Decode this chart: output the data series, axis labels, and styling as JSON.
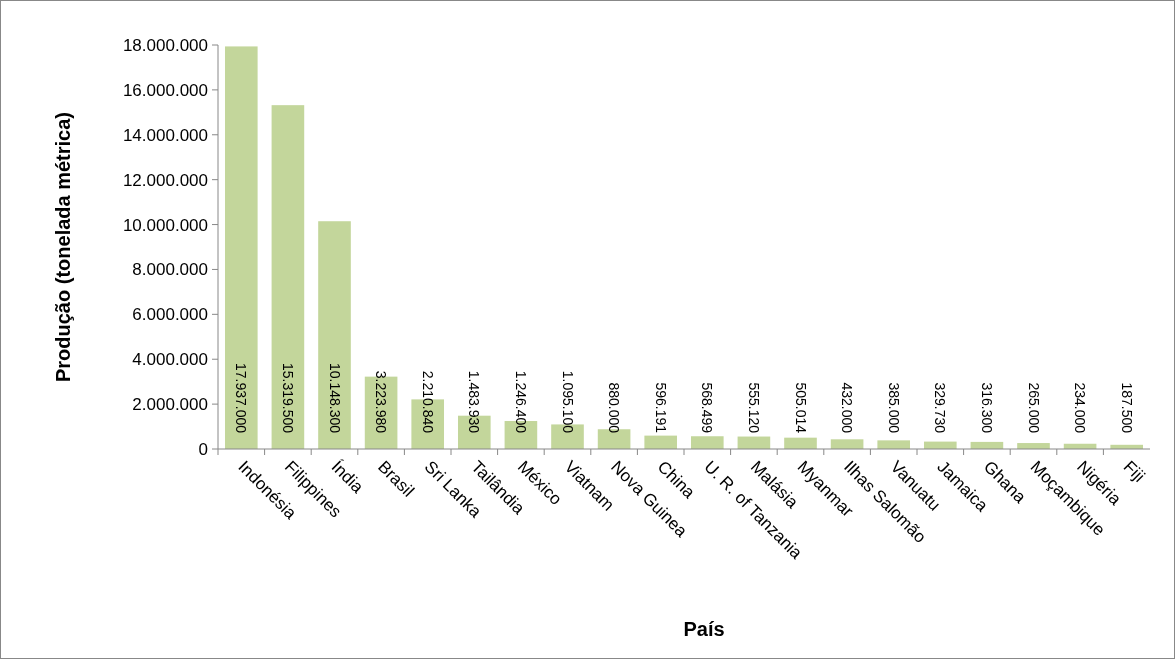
{
  "chart_data": {
    "type": "bar",
    "xlabel": "País",
    "ylabel": "Produção (tonelada métrica)",
    "categories": [
      "Indonésia",
      "Filippines",
      "Índia",
      "Brasil",
      "Sri Lanka",
      "Tailândia",
      "México",
      "Viatnam",
      "Nova Guinea",
      "China",
      "U. R. of Tanzania",
      "Malásia",
      "Myanmar",
      "Ilhas Salomão",
      "Vanuatu",
      "Jamaica",
      "Ghana",
      "Moçambique",
      "Nigéria",
      "Fiji"
    ],
    "series": [
      {
        "color": "#c3d69b",
        "values": [
          17937000,
          15319500,
          10148300,
          3223980,
          2210840,
          1483930,
          1246400,
          1095100,
          880000,
          596191,
          568499,
          555120,
          505014,
          432000,
          385000,
          329730,
          316300,
          265000,
          234000,
          187500
        ],
        "value_labels": [
          "17.937.000",
          "15.319.500",
          "10.148.300",
          "3.223.980",
          "2.210.840",
          "1.483.930",
          "1.246.400",
          "1.095.100",
          "880.000",
          "596.191",
          "568.499",
          "555.120",
          "505.014",
          "432.000",
          "385.000",
          "329.730",
          "316.300",
          "265.000",
          "234.000",
          "187.500"
        ]
      }
    ],
    "ylim": [
      0,
      18000000
    ],
    "yticks": [
      {
        "value": 0,
        "label": "0"
      },
      {
        "value": 2000000,
        "label": "2.000.000"
      },
      {
        "value": 4000000,
        "label": "4.000.000"
      },
      {
        "value": 6000000,
        "label": "6.000.000"
      },
      {
        "value": 8000000,
        "label": "8.000.000"
      },
      {
        "value": 10000000,
        "label": "10.000.000"
      },
      {
        "value": 12000000,
        "label": "12.000.000"
      },
      {
        "value": 14000000,
        "label": "14.000.000"
      },
      {
        "value": 16000000,
        "label": "16.000.000"
      },
      {
        "value": 18000000,
        "label": "18.000.000"
      }
    ],
    "grid": false
  }
}
